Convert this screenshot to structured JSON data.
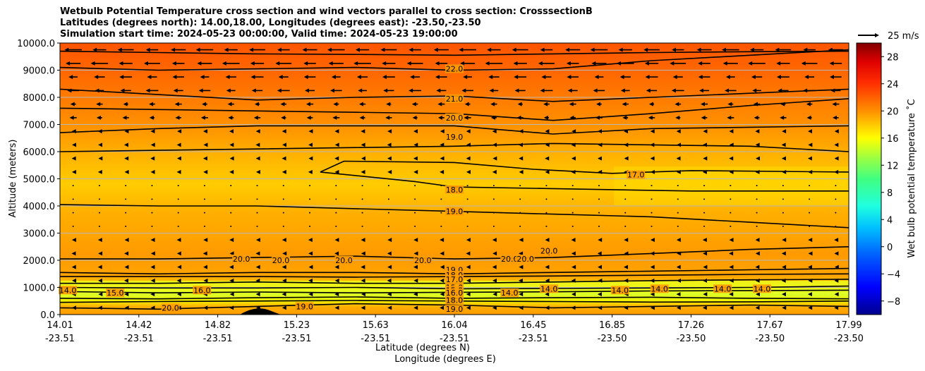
{
  "title_lines": [
    "Wetbulb Potential Temperature cross section and wind vectors parallel to cross section: CrosssectionB",
    "Latitudes (degrees north): 14.00,18.00, Longitudes (degrees east): -23.50,-23.50",
    "Simulation start time: 2024-05-23 00:00:00, Valid time: 2024-05-23 19:00:00"
  ],
  "chart_data": {
    "type": "contour-cross-section",
    "ylabel": "Altitude (meters)",
    "xlabel_lat": "Latitude (degrees N)",
    "xlabel_lon": "Longitude (degrees E)",
    "ylim": [
      0,
      10000
    ],
    "y_ticks": [
      "0.0",
      "1000.0",
      "2000.0",
      "3000.0",
      "4000.0",
      "5000.0",
      "6000.0",
      "7000.0",
      "8000.0",
      "9000.0",
      "10000.0"
    ],
    "x_ticks": [
      {
        "lat": "14.01",
        "lon": "-23.51"
      },
      {
        "lat": "14.42",
        "lon": "-23.51"
      },
      {
        "lat": "14.82",
        "lon": "-23.51"
      },
      {
        "lat": "15.23",
        "lon": "-23.51"
      },
      {
        "lat": "15.63",
        "lon": "-23.51"
      },
      {
        "lat": "16.04",
        "lon": "-23.51"
      },
      {
        "lat": "16.45",
        "lon": "-23.51"
      },
      {
        "lat": "16.85",
        "lon": "-23.50"
      },
      {
        "lat": "17.26",
        "lon": "-23.50"
      },
      {
        "lat": "17.67",
        "lon": "-23.50"
      },
      {
        "lat": "17.99",
        "lon": "-23.50"
      }
    ],
    "colorbar": {
      "label": "Wet bulb potential temperature ˚C",
      "range": [
        -10,
        30
      ],
      "ticks": [
        "−8",
        "−4",
        "0",
        "4",
        "8",
        "12",
        "16",
        "20",
        "24",
        "28"
      ]
    },
    "wind_key_label": "25 m/s",
    "contour_labels": [
      {
        "text": "22.0",
        "frac": 0.5,
        "alt": 9000
      },
      {
        "text": "21.0",
        "frac": 0.5,
        "alt": 7900
      },
      {
        "text": "20.0",
        "frac": 0.5,
        "alt": 7200
      },
      {
        "text": "19.0",
        "frac": 0.5,
        "alt": 6500
      },
      {
        "text": "18.0",
        "frac": 0.5,
        "alt": 4550
      },
      {
        "text": "19.0",
        "frac": 0.5,
        "alt": 3750
      },
      {
        "text": "17.0",
        "frac": 0.73,
        "alt": 5100
      },
      {
        "text": "20.0",
        "frac": 0.23,
        "alt": 2000
      },
      {
        "text": "20.0",
        "frac": 0.28,
        "alt": 1950
      },
      {
        "text": "20.0",
        "frac": 0.36,
        "alt": 1950
      },
      {
        "text": "20.0",
        "frac": 0.46,
        "alt": 1950
      },
      {
        "text": "20.0",
        "frac": 0.57,
        "alt": 2000
      },
      {
        "text": "20.0",
        "frac": 0.59,
        "alt": 2000
      },
      {
        "text": "20.0",
        "frac": 0.62,
        "alt": 2300
      },
      {
        "text": "19.0",
        "frac": 0.5,
        "alt": 1600
      },
      {
        "text": "18.0",
        "frac": 0.5,
        "alt": 1400
      },
      {
        "text": "17.0",
        "frac": 0.5,
        "alt": 1250
      },
      {
        "text": "15.0",
        "frac": 0.5,
        "alt": 950
      },
      {
        "text": "15.0",
        "frac": 0.5,
        "alt": 850
      },
      {
        "text": "16.0",
        "frac": 0.5,
        "alt": 750
      },
      {
        "text": "18.0",
        "frac": 0.5,
        "alt": 480
      },
      {
        "text": "19.0",
        "frac": 0.5,
        "alt": 150
      },
      {
        "text": "15.0",
        "frac": 0.07,
        "alt": 750
      },
      {
        "text": "16.0",
        "frac": 0.18,
        "alt": 850
      },
      {
        "text": "14.0",
        "frac": 0.01,
        "alt": 850
      },
      {
        "text": "20.0",
        "frac": 0.14,
        "alt": 200
      },
      {
        "text": "19.0",
        "frac": 0.31,
        "alt": 250
      },
      {
        "text": "14.0",
        "frac": 0.57,
        "alt": 750
      },
      {
        "text": "14.0",
        "frac": 0.62,
        "alt": 900
      },
      {
        "text": "14.0",
        "frac": 0.71,
        "alt": 850
      },
      {
        "text": "14.0",
        "frac": 0.76,
        "alt": 900
      },
      {
        "text": "14.0",
        "frac": 0.84,
        "alt": 900
      },
      {
        "text": "14.0",
        "frac": 0.89,
        "alt": 900
      }
    ]
  }
}
